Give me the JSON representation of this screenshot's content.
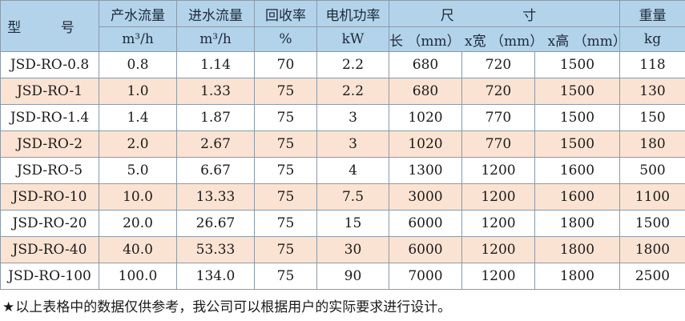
{
  "header": {
    "model": "型 号",
    "product_flow": "产水流量",
    "inlet_flow": "进水流量",
    "recovery": "回收率",
    "motor_power": "电机功率",
    "size": "尺 寸",
    "weight": "重量",
    "unit_product_flow": "m³/h",
    "unit_inlet_flow": "m³/h",
    "unit_recovery": "%",
    "unit_power": "kW",
    "unit_size": "长 （mm） x宽 （mm） x高 （mm）",
    "unit_weight": "kg"
  },
  "rows": [
    {
      "model": "JSD-RO-0.8",
      "product": "0.8",
      "inlet": "1.14",
      "recovery": "70",
      "power": "2.2",
      "length": "680",
      "width": "720",
      "height": "1500",
      "weight": "118"
    },
    {
      "model": "JSD-RO-1",
      "product": "1.0",
      "inlet": "1.33",
      "recovery": "75",
      "power": "2.2",
      "length": "680",
      "width": "720",
      "height": "1500",
      "weight": "130"
    },
    {
      "model": "JSD-RO-1.4",
      "product": "1.4",
      "inlet": "1.87",
      "recovery": "75",
      "power": "3",
      "length": "1020",
      "width": "770",
      "height": "1500",
      "weight": "150"
    },
    {
      "model": "JSD-RO-2",
      "product": "2.0",
      "inlet": "2.67",
      "recovery": "75",
      "power": "3",
      "length": "1020",
      "width": "770",
      "height": "1500",
      "weight": "180"
    },
    {
      "model": "JSD-RO-5",
      "product": "5.0",
      "inlet": "6.67",
      "recovery": "75",
      "power": "4",
      "length": "1300",
      "width": "1200",
      "height": "1600",
      "weight": "500"
    },
    {
      "model": "JSD-RO-10",
      "product": "10.0",
      "inlet": "13.33",
      "recovery": "75",
      "power": "7.5",
      "length": "3000",
      "width": "1200",
      "height": "1600",
      "weight": "1100"
    },
    {
      "model": "JSD-RO-20",
      "product": "20.0",
      "inlet": "26.67",
      "recovery": "75",
      "power": "15",
      "length": "6000",
      "width": "1200",
      "height": "1800",
      "weight": "1500"
    },
    {
      "model": "JSD-RO-40",
      "product": "40.0",
      "inlet": "53.33",
      "recovery": "75",
      "power": "30",
      "length": "6000",
      "width": "1200",
      "height": "1800",
      "weight": "1800"
    },
    {
      "model": "JSD-RO-100",
      "product": "100.0",
      "inlet": "134.0",
      "recovery": "75",
      "power": "90",
      "length": "7000",
      "width": "1200",
      "height": "1800",
      "weight": "2500"
    }
  ],
  "colors": {
    "header_bg": "#b3d3ea",
    "odd_row_bg": "#ffffff",
    "even_row_bg": "#fbe3d3",
    "border": "#8a9aa8"
  },
  "footnote": {
    "icon": "star-icon",
    "star": "★",
    "text": "以上表格中的数据仅供参考，我公司可以根据用户的实际要求进行设计。"
  }
}
